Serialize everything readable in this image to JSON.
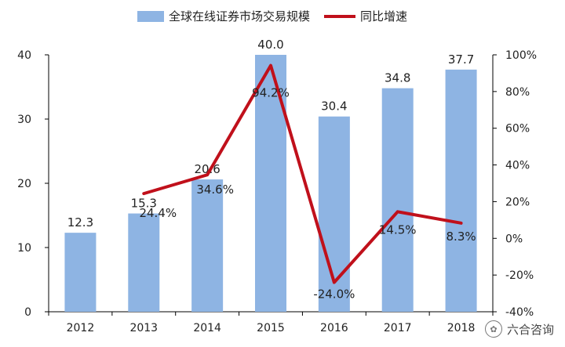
{
  "legend": {
    "bar_label": "全球在线证券市场交易规模",
    "line_label": "同比增速"
  },
  "watermark": {
    "text": "六合咨询",
    "icon": "wechat-icon"
  },
  "colors": {
    "bar": "#8eb4e3",
    "line": "#c0101b",
    "axis": "#000000",
    "text": "#222222"
  },
  "chart_data": {
    "type": "bar+line",
    "categories": [
      "2012",
      "2013",
      "2014",
      "2015",
      "2016",
      "2017",
      "2018"
    ],
    "series": [
      {
        "name": "全球在线证券市场交易规模",
        "type": "bar",
        "axis": "left",
        "values": [
          12.3,
          15.3,
          20.6,
          40.0,
          30.4,
          34.8,
          37.7
        ],
        "labels": [
          "12.3",
          "15.3",
          "20.6",
          "40.0",
          "30.4",
          "34.8",
          "37.7"
        ]
      },
      {
        "name": "同比增速",
        "type": "line",
        "axis": "right",
        "values": [
          null,
          24.4,
          34.6,
          94.2,
          -24.0,
          14.5,
          8.3
        ],
        "labels": [
          "",
          "24.4%",
          "34.6%",
          "94.2%",
          "-24.0%",
          "14.5%",
          "8.3%"
        ]
      }
    ],
    "y_left": {
      "min": 0,
      "max": 40,
      "ticks": [
        "0",
        "10",
        "20",
        "30",
        "40"
      ]
    },
    "y_right": {
      "min": -40,
      "max": 100,
      "ticks": [
        "-40%",
        "-20%",
        "0%",
        "20%",
        "40%",
        "60%",
        "80%",
        "100%"
      ]
    },
    "grid": false,
    "legend_position": "top"
  }
}
